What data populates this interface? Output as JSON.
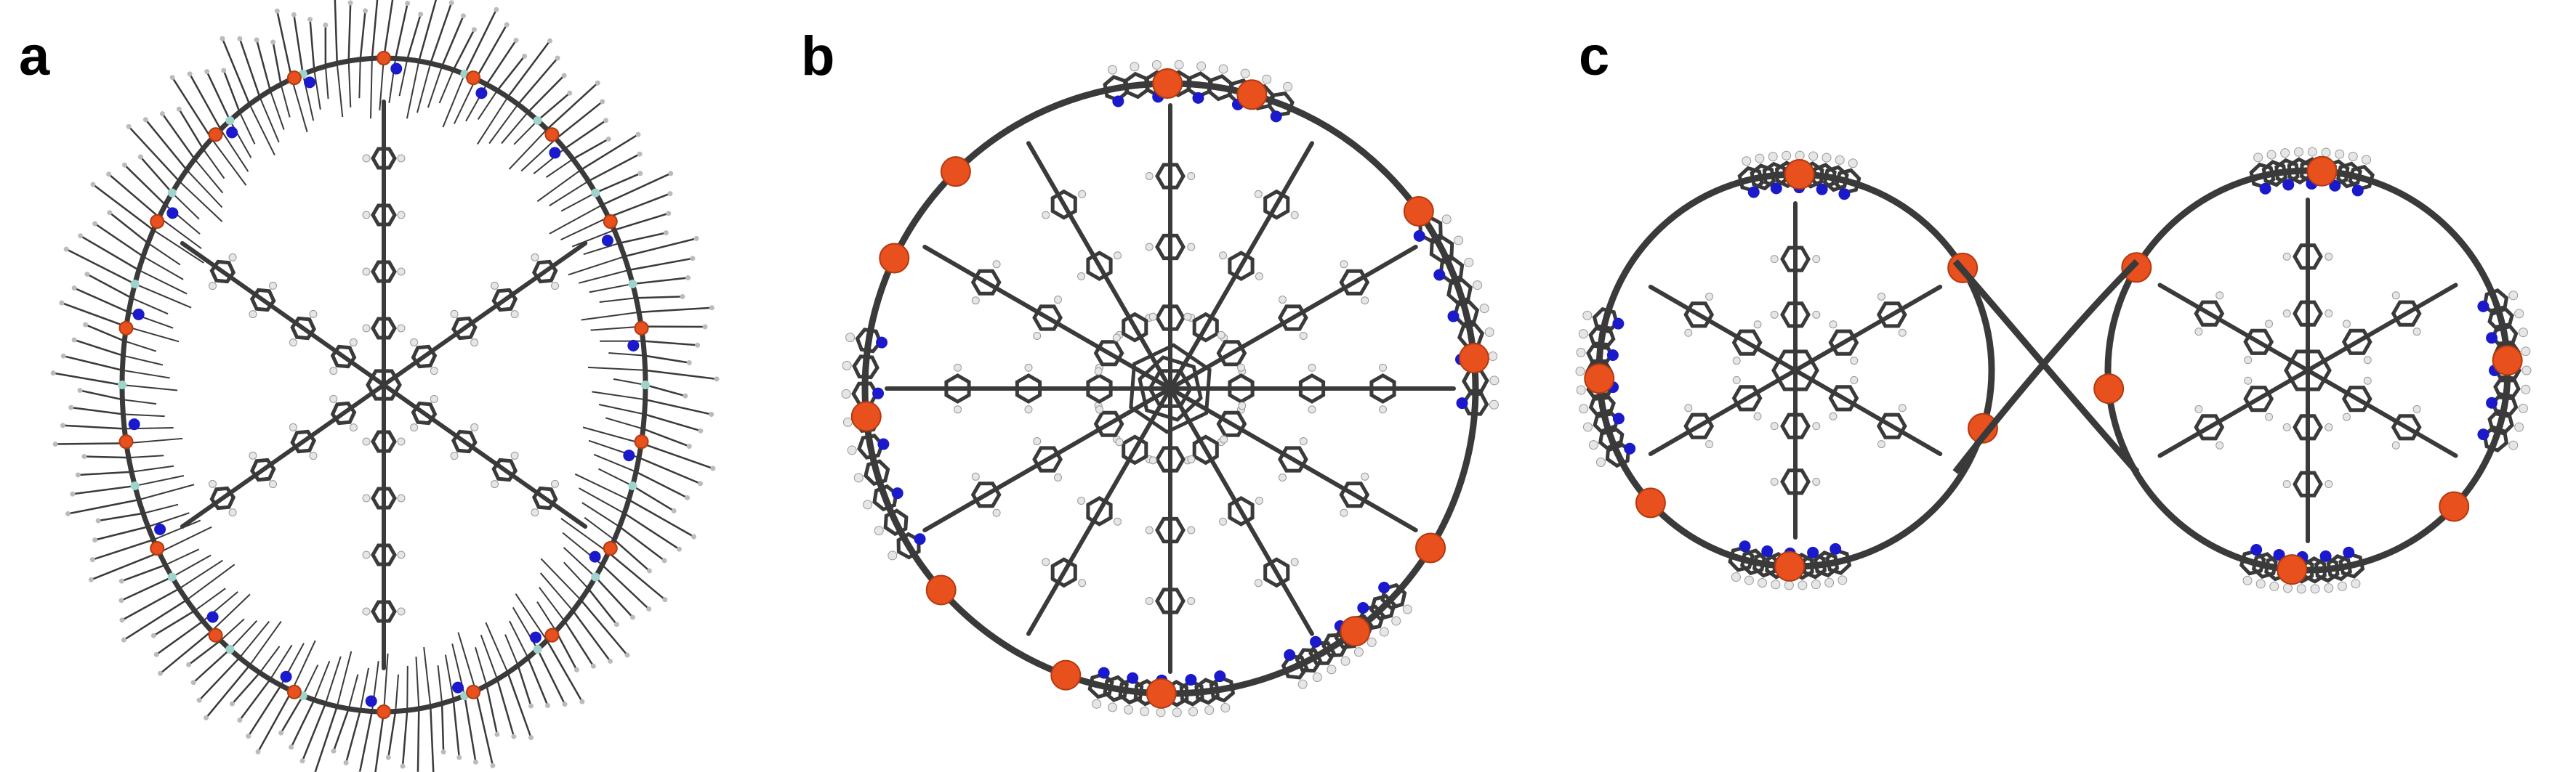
{
  "panels": [
    {
      "label": "a"
    },
    {
      "label": "b"
    },
    {
      "label": "c"
    }
  ],
  "colors": {
    "framework": "#3a3a3a",
    "nitrogen": "#1a1acc",
    "metal": "#e8501e",
    "hydrogen": "#e6e6e6",
    "silicon": "#9fd4cc"
  }
}
